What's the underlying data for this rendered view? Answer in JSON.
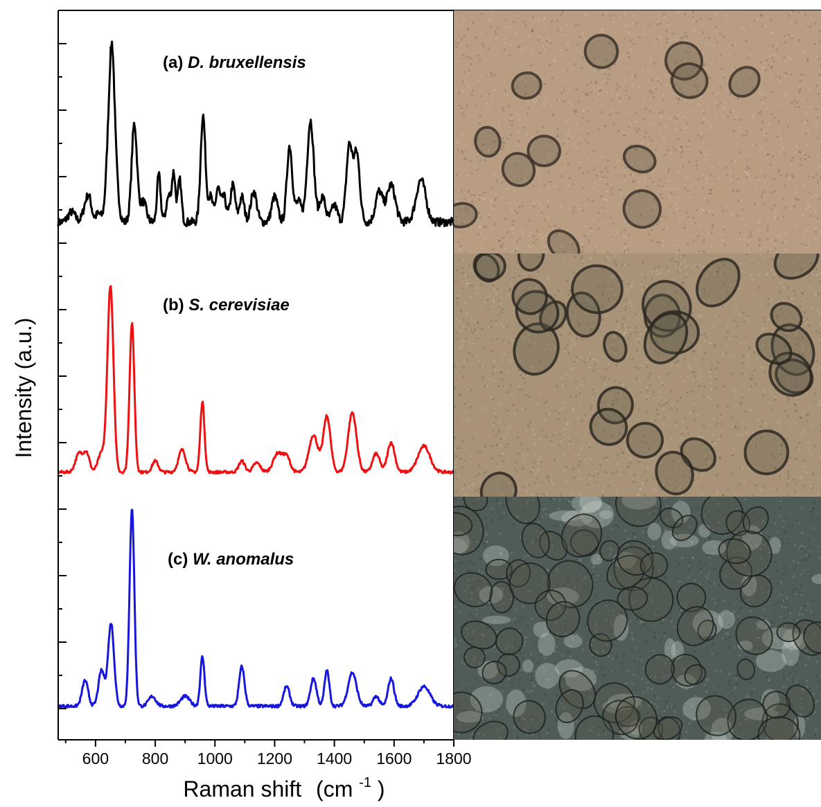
{
  "chart_data": {
    "type": "line",
    "xlabel": "Raman shift",
    "xlabel_unit": "(cm",
    "xlabel_sup": "-1",
    "xlabel_close": ")",
    "ylabel": "Intensity (a.u.)",
    "xlim": [
      475,
      1800
    ],
    "x_ticks": [
      "600",
      "800",
      "1000",
      "1200",
      "1400",
      "1600",
      "1800"
    ],
    "grid": false,
    "series": [
      {
        "name": "(a) D. bruxellensis",
        "label_prefix": "(a)",
        "label_species": "D. bruxellensis",
        "color": "#000000",
        "baseline": 0.12,
        "peaks": [
          [
            520,
            0.06,
            12
          ],
          [
            568,
            0.1,
            10
          ],
          [
            580,
            0.1,
            8
          ],
          [
            610,
            0.05,
            10
          ],
          [
            640,
            0.25,
            8
          ],
          [
            655,
            1.0,
            9
          ],
          [
            672,
            0.15,
            8
          ],
          [
            730,
            0.58,
            9
          ],
          [
            760,
            0.12,
            10
          ],
          [
            812,
            0.28,
            6
          ],
          [
            845,
            0.15,
            8
          ],
          [
            862,
            0.28,
            6
          ],
          [
            882,
            0.25,
            6
          ],
          [
            960,
            0.63,
            8
          ],
          [
            985,
            0.15,
            8
          ],
          [
            1010,
            0.2,
            7
          ],
          [
            1030,
            0.15,
            8
          ],
          [
            1060,
            0.22,
            8
          ],
          [
            1090,
            0.15,
            8
          ],
          [
            1130,
            0.18,
            10
          ],
          [
            1200,
            0.15,
            10
          ],
          [
            1250,
            0.45,
            9
          ],
          [
            1280,
            0.12,
            10
          ],
          [
            1320,
            0.6,
            11
          ],
          [
            1360,
            0.15,
            10
          ],
          [
            1400,
            0.1,
            10
          ],
          [
            1450,
            0.45,
            10
          ],
          [
            1475,
            0.4,
            10
          ],
          [
            1550,
            0.18,
            12
          ],
          [
            1590,
            0.22,
            14
          ],
          [
            1690,
            0.25,
            16
          ]
        ]
      },
      {
        "name": "(b) S. cerevisiae",
        "label_prefix": "(b)",
        "label_species": "S. cerevisiae",
        "color": "#ee1111",
        "baseline": 0.05,
        "peaks": [
          [
            545,
            0.1,
            12
          ],
          [
            570,
            0.1,
            10
          ],
          [
            620,
            0.1,
            12
          ],
          [
            650,
            1.0,
            10
          ],
          [
            722,
            0.8,
            8
          ],
          [
            800,
            0.06,
            10
          ],
          [
            890,
            0.12,
            12
          ],
          [
            958,
            0.38,
            7
          ],
          [
            1090,
            0.06,
            10
          ],
          [
            1140,
            0.05,
            12
          ],
          [
            1210,
            0.1,
            15
          ],
          [
            1240,
            0.08,
            12
          ],
          [
            1330,
            0.2,
            15
          ],
          [
            1375,
            0.3,
            12
          ],
          [
            1460,
            0.32,
            14
          ],
          [
            1540,
            0.1,
            12
          ],
          [
            1590,
            0.16,
            12
          ],
          [
            1700,
            0.14,
            20
          ]
        ]
      },
      {
        "name": "(c) W. anomalus",
        "label_prefix": "(c)",
        "label_species": "W. anomalus",
        "color": "#1616dd",
        "baseline": 0.03,
        "peaks": [
          [
            565,
            0.13,
            10
          ],
          [
            620,
            0.18,
            10
          ],
          [
            652,
            0.42,
            10
          ],
          [
            722,
            1.0,
            8
          ],
          [
            790,
            0.05,
            12
          ],
          [
            900,
            0.05,
            15
          ],
          [
            958,
            0.25,
            7
          ],
          [
            1090,
            0.2,
            9
          ],
          [
            1240,
            0.1,
            10
          ],
          [
            1330,
            0.14,
            10
          ],
          [
            1375,
            0.18,
            8
          ],
          [
            1460,
            0.17,
            14
          ],
          [
            1540,
            0.05,
            10
          ],
          [
            1590,
            0.14,
            10
          ],
          [
            1700,
            0.1,
            20
          ]
        ]
      }
    ]
  },
  "micrographs": [
    {
      "panel": "a",
      "background": "#b89d83",
      "cell_color": "#3b3128"
    },
    {
      "panel": "b",
      "background": "#a89378",
      "cell_color": "#2c2820"
    },
    {
      "panel": "c",
      "background": "#4f5c58",
      "cell_color": "#1c2221",
      "highlight": "#c9d2cc"
    }
  ]
}
